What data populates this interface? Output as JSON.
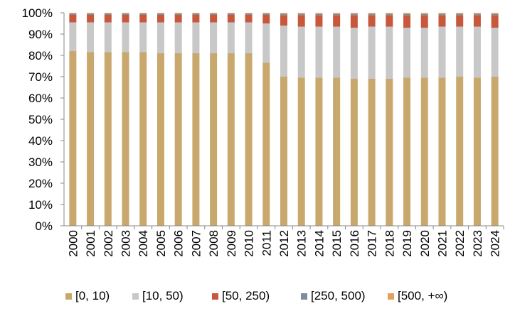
{
  "chart_data": {
    "type": "bar",
    "stacked": true,
    "normalized": true,
    "categories": [
      "2000",
      "2001",
      "2002",
      "2003",
      "2004",
      "2005",
      "2006",
      "2007",
      "2008",
      "2009",
      "2010",
      "2011",
      "2012",
      "2013",
      "2014",
      "2015",
      "2016",
      "2017",
      "2018",
      "2019",
      "2020",
      "2021",
      "2022",
      "2023",
      "2024"
    ],
    "ylim": [
      0,
      100
    ],
    "yticks": [
      "0%",
      "10%",
      "20%",
      "30%",
      "40%",
      "50%",
      "60%",
      "70%",
      "80%",
      "90%",
      "100%"
    ],
    "grid": false,
    "legend_position": "bottom",
    "series": [
      {
        "name": "[0, 10)",
        "color": "#C9A86E",
        "values": [
          82,
          81.5,
          81.5,
          81.5,
          81.5,
          81,
          81,
          81,
          81,
          81,
          81,
          76.5,
          70,
          69.5,
          69.5,
          69.5,
          69,
          69,
          69,
          69.5,
          69.5,
          69.5,
          70,
          69.5,
          70
        ]
      },
      {
        "name": "[10, 50)",
        "color": "#C8C8C8",
        "values": [
          13.5,
          14,
          14,
          14,
          14,
          14.5,
          14.5,
          14.5,
          14.5,
          14.5,
          14.5,
          18.5,
          24,
          24,
          24,
          24,
          24,
          24.5,
          24.5,
          23.5,
          23.5,
          24,
          23.5,
          24,
          23
        ]
      },
      {
        "name": "[50, 250)",
        "color": "#C8583C",
        "values": [
          3.5,
          3.5,
          3.5,
          3.5,
          3.5,
          3.5,
          3.5,
          3.5,
          3.5,
          3.5,
          3.5,
          4,
          4.8,
          5.3,
          5.3,
          5.3,
          5.8,
          5.3,
          5.3,
          5.8,
          5.8,
          5.3,
          5.3,
          5.3,
          5.8
        ]
      },
      {
        "name": "[250, 500)",
        "color": "#7F8C9C",
        "values": [
          0.5,
          0.6,
          0.5,
          0.6,
          0.5,
          0.6,
          0.5,
          0.5,
          0.5,
          0.5,
          0.5,
          0.5,
          0.6,
          0.6,
          0.6,
          0.6,
          0.6,
          0.6,
          0.6,
          0.6,
          0.6,
          0.6,
          0.6,
          0.6,
          0.6
        ]
      },
      {
        "name": "[500, +∞)",
        "color": "#E3A15B",
        "values": [
          0.5,
          0.4,
          0.5,
          0.4,
          0.5,
          0.4,
          0.5,
          0.5,
          0.5,
          0.5,
          0.5,
          0.5,
          0.6,
          0.6,
          0.6,
          0.6,
          0.6,
          0.6,
          0.6,
          0.6,
          0.6,
          0.6,
          0.6,
          0.6,
          0.6
        ]
      }
    ]
  }
}
